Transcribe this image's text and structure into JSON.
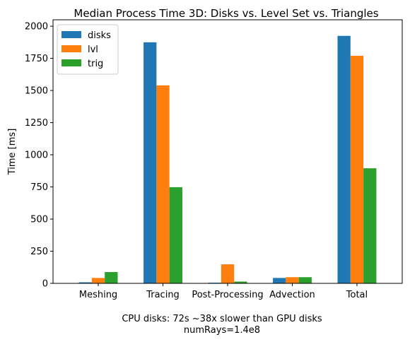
{
  "chart_data": {
    "type": "bar",
    "title": "Median Process Time 3D: Disks vs. Level Set vs. Triangles",
    "ylabel": "Time [ms]",
    "xlabel_lines": [
      "CPU disks: 72s ~38x slower than GPU disks",
      "numRays=1.4e8"
    ],
    "categories": [
      "Meshing",
      "Tracing",
      "Post-Processing",
      "Advection",
      "Total"
    ],
    "ylim": [
      0,
      2050
    ],
    "yticks": [
      0,
      250,
      500,
      750,
      1000,
      1250,
      1500,
      1750,
      2000
    ],
    "grid": false,
    "legend_position": "top-left",
    "series": [
      {
        "name": "disks",
        "color": "#1f77b4",
        "values": [
          8,
          1875,
          5,
          42,
          1925
        ]
      },
      {
        "name": "lvl",
        "color": "#ff7f0e",
        "values": [
          42,
          1540,
          148,
          48,
          1770
        ]
      },
      {
        "name": "trig",
        "color": "#2ca02c",
        "values": [
          88,
          748,
          14,
          48,
          895
        ]
      }
    ]
  }
}
